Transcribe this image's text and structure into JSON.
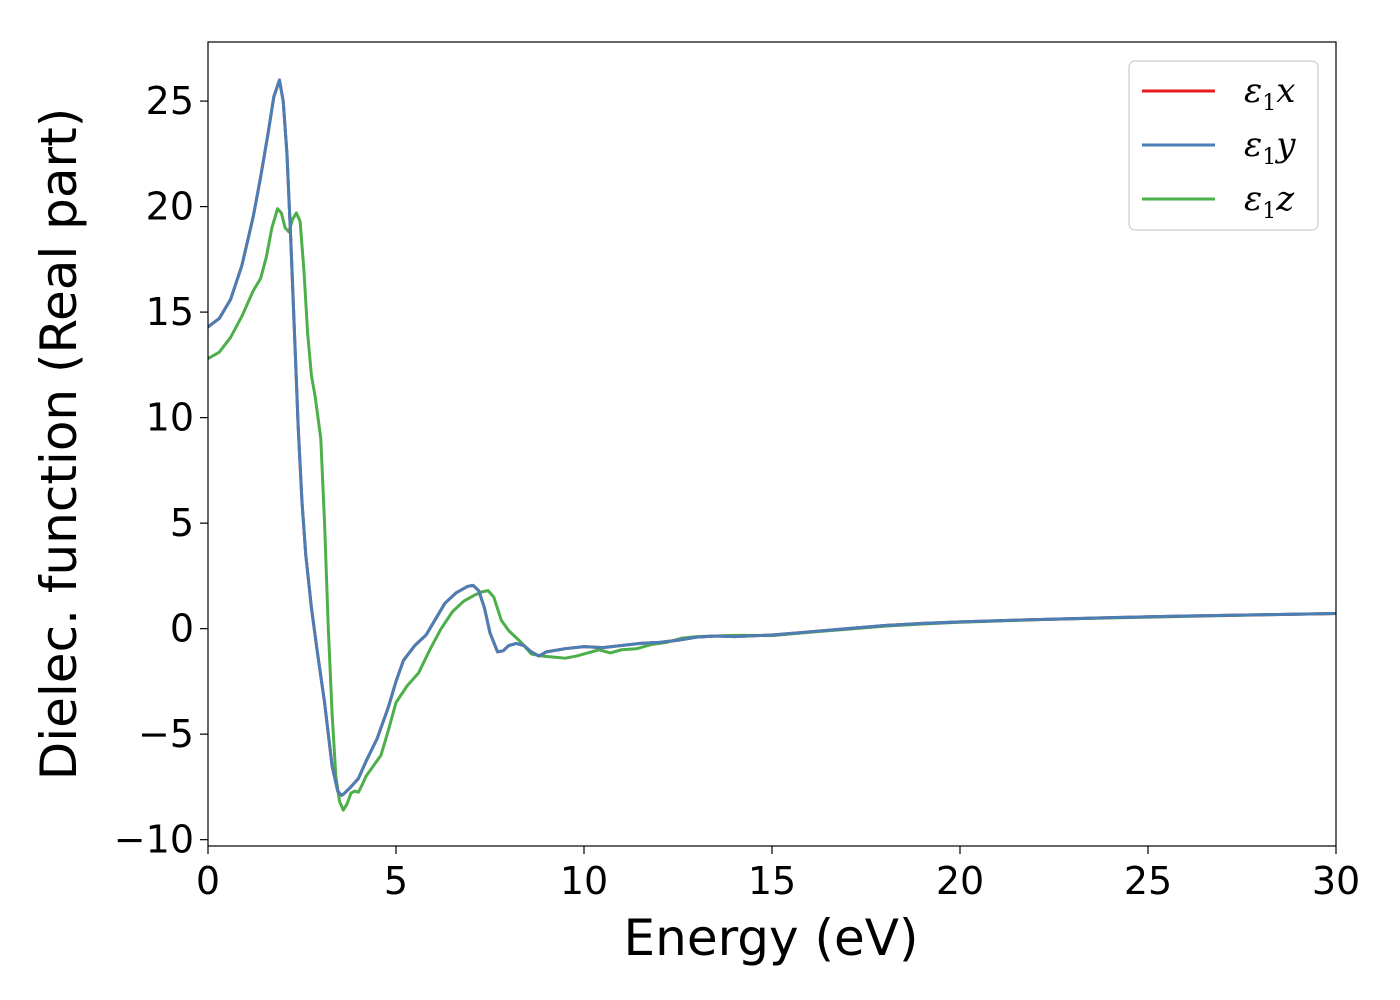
{
  "chart_data": {
    "type": "line",
    "title": "",
    "xlabel": "Energy (eV)",
    "ylabel": "Dielec. function (Real part)",
    "xlim": [
      0,
      30
    ],
    "ylim": [
      -10.3,
      27.8
    ],
    "xticks": [
      0,
      5,
      10,
      15,
      20,
      25,
      30
    ],
    "yticks": [
      -10,
      -5,
      0,
      5,
      10,
      15,
      20,
      25
    ],
    "xtick_labels": [
      "0",
      "5",
      "10",
      "15",
      "20",
      "25",
      "30"
    ],
    "ytick_labels": [
      "−10",
      "−5",
      "0",
      "5",
      "10",
      "15",
      "20",
      "25"
    ],
    "grid": false,
    "legend_position": "top-right",
    "series": [
      {
        "name": "ε₁x",
        "legend_main": "ε",
        "legend_sub": "1",
        "legend_tail": "x",
        "color": "#e41a1c",
        "x": [
          0,
          0.3,
          0.6,
          0.9,
          1.2,
          1.4,
          1.6,
          1.75,
          1.9,
          2.0,
          2.1,
          2.2,
          2.3,
          2.4,
          2.5,
          2.6,
          2.75,
          2.9,
          3.1,
          3.3,
          3.45,
          3.55,
          3.6,
          3.8,
          4.0,
          4.2,
          4.5,
          4.8,
          5.0,
          5.2,
          5.5,
          5.8,
          6.0,
          6.3,
          6.6,
          6.9,
          7.05,
          7.2,
          7.35,
          7.5,
          7.7,
          7.85,
          8.0,
          8.2,
          8.4,
          8.6,
          8.8,
          9.0,
          9.5,
          10.0,
          10.5,
          11.0,
          11.5,
          12.0,
          12.5,
          13.0,
          13.5,
          14.0,
          15.0,
          16.0,
          17.0,
          18.0,
          19.0,
          20.0,
          22.0,
          24.0,
          26.0,
          28.0,
          30.0
        ],
        "y": [
          14.3,
          14.7,
          15.6,
          17.2,
          19.5,
          21.4,
          23.5,
          25.2,
          26.0,
          25.0,
          22.5,
          18.5,
          14.0,
          9.5,
          6.0,
          3.5,
          1.0,
          -1.0,
          -3.5,
          -6.5,
          -7.7,
          -7.9,
          -7.85,
          -7.5,
          -7.1,
          -6.3,
          -5.2,
          -3.7,
          -2.5,
          -1.5,
          -0.8,
          -0.3,
          0.3,
          1.2,
          1.7,
          2.0,
          2.05,
          1.8,
          1.0,
          -0.2,
          -1.1,
          -1.05,
          -0.8,
          -0.7,
          -0.8,
          -1.1,
          -1.3,
          -1.1,
          -0.95,
          -0.85,
          -0.9,
          -0.8,
          -0.7,
          -0.65,
          -0.55,
          -0.4,
          -0.35,
          -0.38,
          -0.3,
          -0.15,
          0.0,
          0.15,
          0.25,
          0.32,
          0.43,
          0.52,
          0.6,
          0.66,
          0.72
        ]
      },
      {
        "name": "ε₁y",
        "legend_main": "ε",
        "legend_sub": "1",
        "legend_tail": "y",
        "color": "#4a7fb5",
        "x": [
          0,
          0.3,
          0.6,
          0.9,
          1.2,
          1.4,
          1.6,
          1.75,
          1.9,
          2.0,
          2.1,
          2.2,
          2.3,
          2.4,
          2.5,
          2.6,
          2.75,
          2.9,
          3.1,
          3.3,
          3.45,
          3.55,
          3.6,
          3.8,
          4.0,
          4.2,
          4.5,
          4.8,
          5.0,
          5.2,
          5.5,
          5.8,
          6.0,
          6.3,
          6.6,
          6.9,
          7.05,
          7.2,
          7.35,
          7.5,
          7.7,
          7.85,
          8.0,
          8.2,
          8.4,
          8.6,
          8.8,
          9.0,
          9.5,
          10.0,
          10.5,
          11.0,
          11.5,
          12.0,
          12.5,
          13.0,
          13.5,
          14.0,
          15.0,
          16.0,
          17.0,
          18.0,
          19.0,
          20.0,
          22.0,
          24.0,
          26.0,
          28.0,
          30.0
        ],
        "y": [
          14.3,
          14.7,
          15.6,
          17.2,
          19.5,
          21.4,
          23.5,
          25.2,
          26.0,
          25.0,
          22.5,
          18.5,
          14.0,
          9.5,
          6.0,
          3.5,
          1.0,
          -1.0,
          -3.5,
          -6.5,
          -7.7,
          -7.9,
          -7.85,
          -7.5,
          -7.1,
          -6.3,
          -5.2,
          -3.7,
          -2.5,
          -1.5,
          -0.8,
          -0.3,
          0.3,
          1.2,
          1.7,
          2.0,
          2.05,
          1.8,
          1.0,
          -0.2,
          -1.1,
          -1.05,
          -0.8,
          -0.7,
          -0.8,
          -1.1,
          -1.3,
          -1.1,
          -0.95,
          -0.85,
          -0.9,
          -0.8,
          -0.7,
          -0.65,
          -0.55,
          -0.4,
          -0.35,
          -0.38,
          -0.3,
          -0.15,
          0.0,
          0.15,
          0.25,
          0.32,
          0.43,
          0.52,
          0.6,
          0.66,
          0.72
        ]
      },
      {
        "name": "ε₁z",
        "legend_main": "ε",
        "legend_sub": "1",
        "legend_tail": "z",
        "color": "#4daf4a",
        "x": [
          0,
          0.3,
          0.6,
          0.9,
          1.2,
          1.4,
          1.55,
          1.7,
          1.85,
          1.95,
          2.05,
          2.15,
          2.25,
          2.35,
          2.45,
          2.55,
          2.65,
          2.75,
          2.85,
          3.0,
          3.1,
          3.2,
          3.3,
          3.4,
          3.5,
          3.6,
          3.7,
          3.8,
          3.9,
          4.0,
          4.1,
          4.2,
          4.4,
          4.6,
          4.8,
          5.0,
          5.3,
          5.6,
          5.9,
          6.2,
          6.5,
          6.8,
          7.1,
          7.3,
          7.45,
          7.6,
          7.8,
          8.0,
          8.3,
          8.6,
          8.9,
          9.2,
          9.5,
          9.8,
          10.1,
          10.4,
          10.7,
          11.0,
          11.4,
          11.8,
          12.2,
          12.6,
          13.0,
          13.5,
          14.0,
          14.5,
          15.0,
          16.0,
          17.0,
          18.0,
          19.0,
          20.0,
          22.0,
          24.0,
          26.0,
          28.0,
          30.0
        ],
        "y": [
          12.8,
          13.1,
          13.8,
          14.8,
          16.0,
          16.6,
          17.6,
          19.0,
          19.9,
          19.7,
          19.0,
          18.8,
          19.4,
          19.7,
          19.3,
          17.0,
          14.0,
          12.0,
          11.0,
          9.0,
          5.0,
          0.0,
          -4.0,
          -7.0,
          -8.2,
          -8.6,
          -8.3,
          -7.8,
          -7.7,
          -7.75,
          -7.4,
          -7.0,
          -6.5,
          -6.0,
          -4.8,
          -3.5,
          -2.7,
          -2.1,
          -1.0,
          0.0,
          0.8,
          1.3,
          1.6,
          1.75,
          1.8,
          1.5,
          0.4,
          -0.1,
          -0.6,
          -1.2,
          -1.3,
          -1.35,
          -1.4,
          -1.3,
          -1.15,
          -1.0,
          -1.15,
          -1.0,
          -0.95,
          -0.75,
          -0.65,
          -0.45,
          -0.38,
          -0.35,
          -0.32,
          -0.32,
          -0.33,
          -0.17,
          -0.03,
          0.12,
          0.22,
          0.3,
          0.42,
          0.51,
          0.58,
          0.65,
          0.72
        ]
      }
    ]
  }
}
